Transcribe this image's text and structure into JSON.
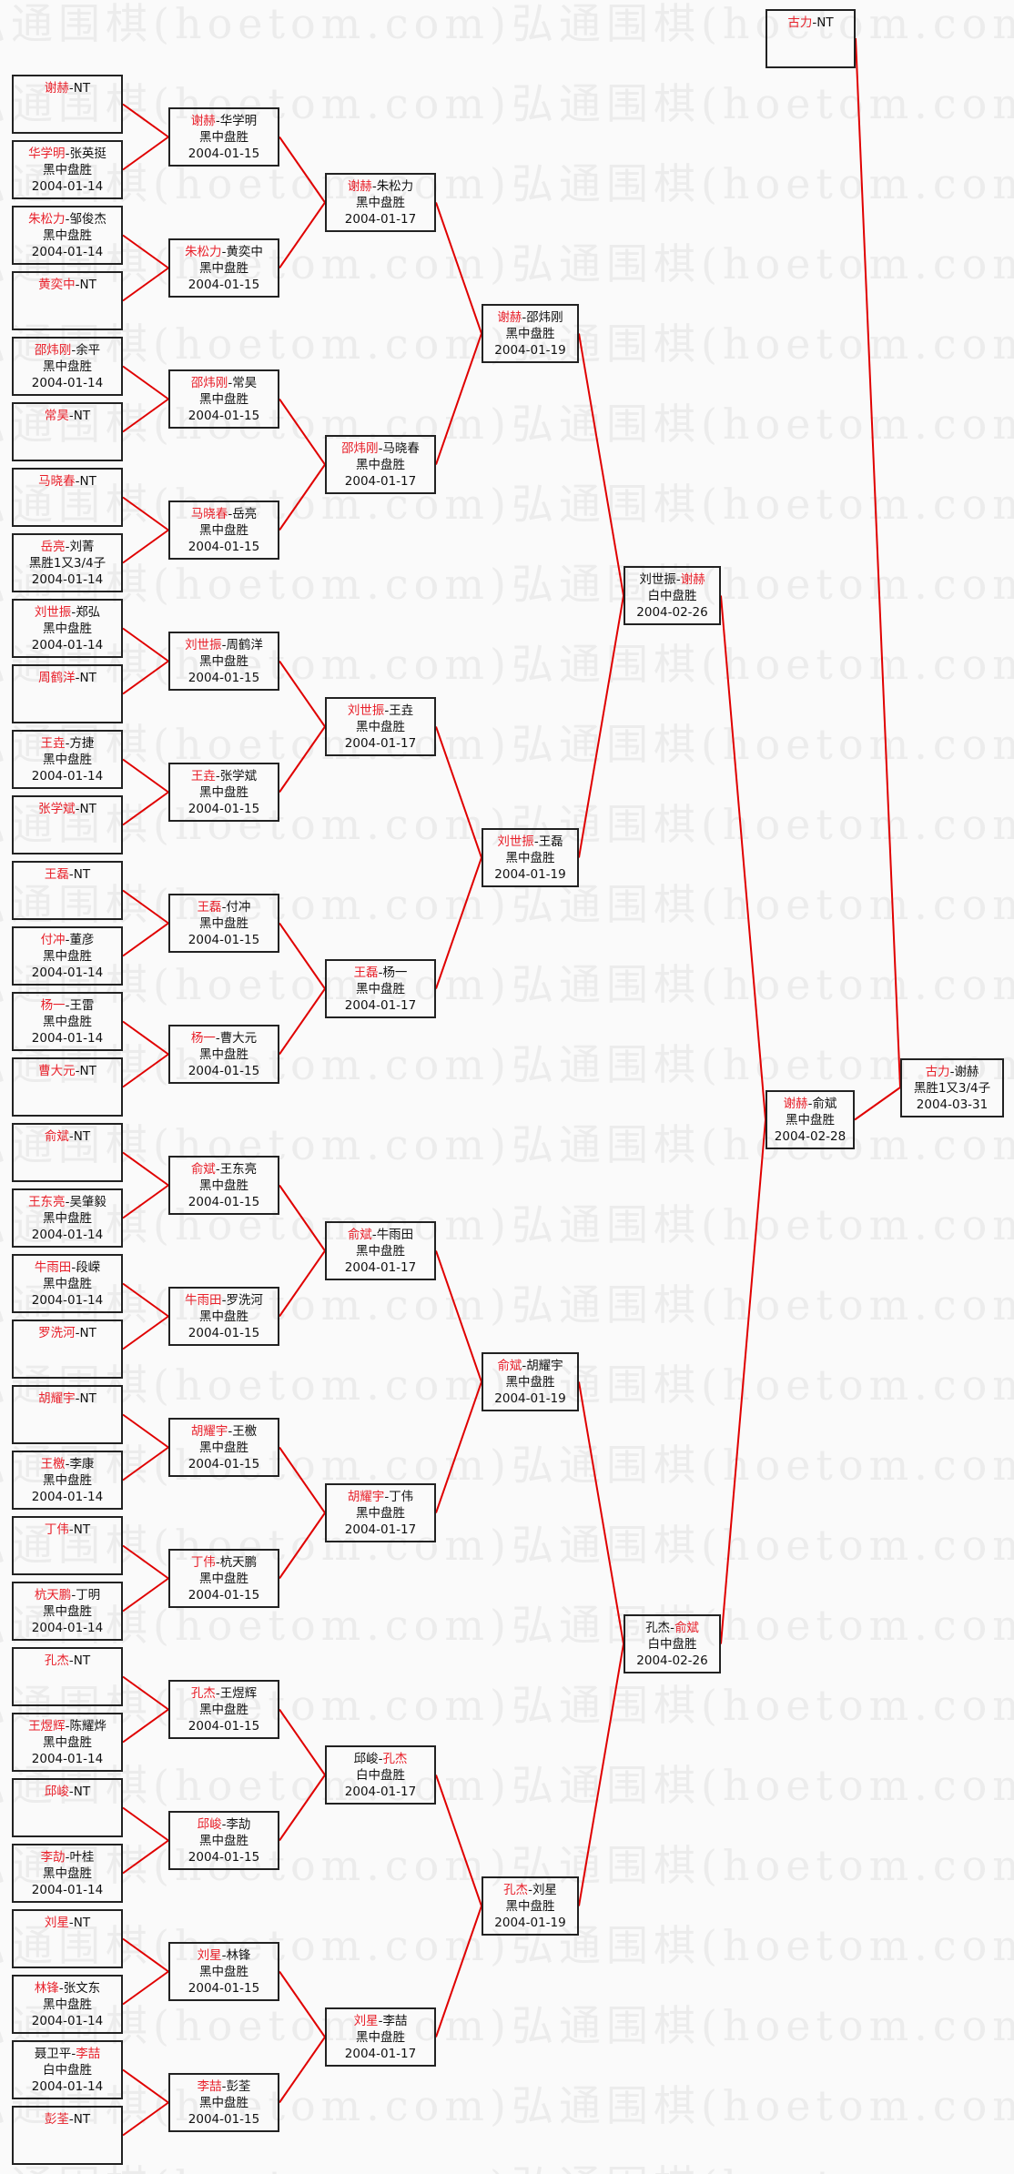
{
  "watermark": "弘通围棋(hoetom.com)",
  "colors": {
    "winner": "#e8202a",
    "connector": "#e00000",
    "border": "#222222"
  },
  "rounds": [
    [
      {
        "p1": "谢赫",
        "p2": "NT",
        "winner": 1,
        "result": "",
        "date": ""
      },
      {
        "p1": "华学明",
        "p2": "张英挺",
        "winner": 1,
        "result": "黑中盘胜",
        "date": "2004-01-14"
      },
      {
        "p1": "朱松力",
        "p2": "邹俊杰",
        "winner": 1,
        "result": "黑中盘胜",
        "date": "2004-01-14"
      },
      {
        "p1": "黄奕中",
        "p2": "NT",
        "winner": 1,
        "result": "",
        "date": ""
      },
      {
        "p1": "邵炜刚",
        "p2": "余平",
        "winner": 1,
        "result": "黑中盘胜",
        "date": "2004-01-14"
      },
      {
        "p1": "常昊",
        "p2": "NT",
        "winner": 1,
        "result": "",
        "date": ""
      },
      {
        "p1": "马晓春",
        "p2": "NT",
        "winner": 1,
        "result": "",
        "date": ""
      },
      {
        "p1": "岳亮",
        "p2": "刘菁",
        "winner": 1,
        "result": "黑胜1又3/4子",
        "date": "2004-01-14"
      },
      {
        "p1": "刘世振",
        "p2": "郑弘",
        "winner": 1,
        "result": "黑中盘胜",
        "date": "2004-01-14"
      },
      {
        "p1": "周鹤洋",
        "p2": "NT",
        "winner": 1,
        "result": "",
        "date": ""
      },
      {
        "p1": "王垚",
        "p2": "方捷",
        "winner": 1,
        "result": "黑中盘胜",
        "date": "2004-01-14"
      },
      {
        "p1": "张学斌",
        "p2": "NT",
        "winner": 1,
        "result": "",
        "date": ""
      },
      {
        "p1": "王磊",
        "p2": "NT",
        "winner": 1,
        "result": "",
        "date": ""
      },
      {
        "p1": "付冲",
        "p2": "董彦",
        "winner": 1,
        "result": "黑中盘胜",
        "date": "2004-01-14"
      },
      {
        "p1": "杨一",
        "p2": "王雷",
        "winner": 1,
        "result": "黑中盘胜",
        "date": "2004-01-14"
      },
      {
        "p1": "曹大元",
        "p2": "NT",
        "winner": 1,
        "result": "",
        "date": ""
      },
      {
        "p1": "俞斌",
        "p2": "NT",
        "winner": 1,
        "result": "",
        "date": ""
      },
      {
        "p1": "王东亮",
        "p2": "吴肇毅",
        "winner": 1,
        "result": "黑中盘胜",
        "date": "2004-01-14"
      },
      {
        "p1": "牛雨田",
        "p2": "段嵘",
        "winner": 1,
        "result": "黑中盘胜",
        "date": "2004-01-14"
      },
      {
        "p1": "罗洗河",
        "p2": "NT",
        "winner": 1,
        "result": "",
        "date": ""
      },
      {
        "p1": "胡耀宇",
        "p2": "NT",
        "winner": 1,
        "result": "",
        "date": ""
      },
      {
        "p1": "王檄",
        "p2": "李康",
        "winner": 1,
        "result": "黑中盘胜",
        "date": "2004-01-14"
      },
      {
        "p1": "丁伟",
        "p2": "NT",
        "winner": 1,
        "result": "",
        "date": ""
      },
      {
        "p1": "杭天鹏",
        "p2": "丁明",
        "winner": 1,
        "result": "黑中盘胜",
        "date": "2004-01-14"
      },
      {
        "p1": "孔杰",
        "p2": "NT",
        "winner": 1,
        "result": "",
        "date": ""
      },
      {
        "p1": "王煜辉",
        "p2": "陈耀烨",
        "winner": 1,
        "result": "黑中盘胜",
        "date": "2004-01-14"
      },
      {
        "p1": "邱峻",
        "p2": "NT",
        "winner": 1,
        "result": "",
        "date": ""
      },
      {
        "p1": "李劼",
        "p2": "叶桂",
        "winner": 1,
        "result": "黑中盘胜",
        "date": "2004-01-14"
      },
      {
        "p1": "刘星",
        "p2": "NT",
        "winner": 1,
        "result": "",
        "date": ""
      },
      {
        "p1": "林锋",
        "p2": "张文东",
        "winner": 1,
        "result": "黑中盘胜",
        "date": "2004-01-14"
      },
      {
        "p1": "聂卫平",
        "p2": "李喆",
        "winner": 2,
        "result": "白中盘胜",
        "date": "2004-01-14"
      },
      {
        "p1": "彭荃",
        "p2": "NT",
        "winner": 1,
        "result": "",
        "date": ""
      }
    ],
    [
      {
        "p1": "谢赫",
        "p2": "华学明",
        "winner": 1,
        "result": "黑中盘胜",
        "date": "2004-01-15"
      },
      {
        "p1": "朱松力",
        "p2": "黄奕中",
        "winner": 1,
        "result": "黑中盘胜",
        "date": "2004-01-15"
      },
      {
        "p1": "邵炜刚",
        "p2": "常昊",
        "winner": 1,
        "result": "黑中盘胜",
        "date": "2004-01-15"
      },
      {
        "p1": "马晓春",
        "p2": "岳亮",
        "winner": 1,
        "result": "黑中盘胜",
        "date": "2004-01-15"
      },
      {
        "p1": "刘世振",
        "p2": "周鹤洋",
        "winner": 1,
        "result": "黑中盘胜",
        "date": "2004-01-15"
      },
      {
        "p1": "王垚",
        "p2": "张学斌",
        "winner": 1,
        "result": "黑中盘胜",
        "date": "2004-01-15"
      },
      {
        "p1": "王磊",
        "p2": "付冲",
        "winner": 1,
        "result": "黑中盘胜",
        "date": "2004-01-15"
      },
      {
        "p1": "杨一",
        "p2": "曹大元",
        "winner": 1,
        "result": "黑中盘胜",
        "date": "2004-01-15"
      },
      {
        "p1": "俞斌",
        "p2": "王东亮",
        "winner": 1,
        "result": "黑中盘胜",
        "date": "2004-01-15"
      },
      {
        "p1": "牛雨田",
        "p2": "罗洗河",
        "winner": 1,
        "result": "黑中盘胜",
        "date": "2004-01-15"
      },
      {
        "p1": "胡耀宇",
        "p2": "王檄",
        "winner": 1,
        "result": "黑中盘胜",
        "date": "2004-01-15"
      },
      {
        "p1": "丁伟",
        "p2": "杭天鹏",
        "winner": 1,
        "result": "黑中盘胜",
        "date": "2004-01-15"
      },
      {
        "p1": "孔杰",
        "p2": "王煜辉",
        "winner": 1,
        "result": "黑中盘胜",
        "date": "2004-01-15"
      },
      {
        "p1": "邱峻",
        "p2": "李劼",
        "winner": 1,
        "result": "黑中盘胜",
        "date": "2004-01-15"
      },
      {
        "p1": "刘星",
        "p2": "林锋",
        "winner": 1,
        "result": "黑中盘胜",
        "date": "2004-01-15"
      },
      {
        "p1": "李喆",
        "p2": "彭荃",
        "winner": 1,
        "result": "黑中盘胜",
        "date": "2004-01-15"
      }
    ],
    [
      {
        "p1": "谢赫",
        "p2": "朱松力",
        "winner": 1,
        "result": "黑中盘胜",
        "date": "2004-01-17"
      },
      {
        "p1": "邵炜刚",
        "p2": "马晓春",
        "winner": 1,
        "result": "黑中盘胜",
        "date": "2004-01-17"
      },
      {
        "p1": "刘世振",
        "p2": "王垚",
        "winner": 1,
        "result": "黑中盘胜",
        "date": "2004-01-17"
      },
      {
        "p1": "王磊",
        "p2": "杨一",
        "winner": 1,
        "result": "黑中盘胜",
        "date": "2004-01-17"
      },
      {
        "p1": "俞斌",
        "p2": "牛雨田",
        "winner": 1,
        "result": "黑中盘胜",
        "date": "2004-01-17"
      },
      {
        "p1": "胡耀宇",
        "p2": "丁伟",
        "winner": 1,
        "result": "黑中盘胜",
        "date": "2004-01-17"
      },
      {
        "p1": "邱峻",
        "p2": "孔杰",
        "winner": 2,
        "result": "白中盘胜",
        "date": "2004-01-17"
      },
      {
        "p1": "刘星",
        "p2": "李喆",
        "winner": 1,
        "result": "黑中盘胜",
        "date": "2004-01-17"
      }
    ],
    [
      {
        "p1": "谢赫",
        "p2": "邵炜刚",
        "winner": 1,
        "result": "黑中盘胜",
        "date": "2004-01-19"
      },
      {
        "p1": "刘世振",
        "p2": "王磊",
        "winner": 1,
        "result": "黑中盘胜",
        "date": "2004-01-19"
      },
      {
        "p1": "俞斌",
        "p2": "胡耀宇",
        "winner": 1,
        "result": "黑中盘胜",
        "date": "2004-01-19"
      },
      {
        "p1": "孔杰",
        "p2": "刘星",
        "winner": 1,
        "result": "黑中盘胜",
        "date": "2004-01-19"
      }
    ],
    [
      {
        "p1": "刘世振",
        "p2": "谢赫",
        "winner": 2,
        "result": "白中盘胜",
        "date": "2004-02-26"
      },
      {
        "p1": "孔杰",
        "p2": "俞斌",
        "winner": 2,
        "result": "白中盘胜",
        "date": "2004-02-26"
      }
    ],
    [
      {
        "p1": "谢赫",
        "p2": "俞斌",
        "winner": 1,
        "result": "黑中盘胜",
        "date": "2004-02-28"
      }
    ]
  ],
  "seed": {
    "p1": "古力",
    "p2": "NT",
    "winner": 1,
    "result": "",
    "date": ""
  },
  "final": {
    "p1": "古力",
    "p2": "谢赫",
    "winner": 1,
    "result": "黑胜1又3/4子",
    "date": "2004-03-31"
  }
}
